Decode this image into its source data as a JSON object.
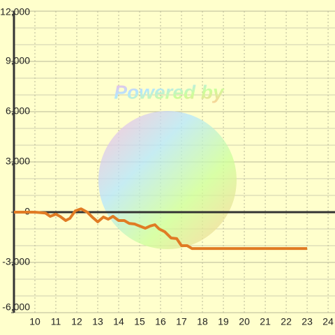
{
  "chart_data": {
    "type": "line",
    "watermark": "Powered by",
    "x": [
      9,
      10,
      10.5,
      10.73,
      11,
      11.2,
      11.47,
      11.67,
      11.93,
      12.2,
      12.5,
      12.77,
      13,
      13.27,
      13.5,
      13.73,
      14,
      14.27,
      14.5,
      14.77,
      15,
      15.27,
      15.5,
      15.73,
      15.93,
      16.2,
      16.5,
      16.77,
      17,
      17.27,
      17.5,
      23
    ],
    "series": [
      {
        "color": "#e07b24",
        "values": [
          0,
          0,
          -50,
          -250,
          -120,
          -250,
          -500,
          -370,
          80,
          200,
          0,
          -330,
          -580,
          -290,
          -420,
          -250,
          -500,
          -500,
          -670,
          -710,
          -830,
          -960,
          -830,
          -750,
          -1000,
          -1170,
          -1540,
          -1580,
          -2000,
          -2000,
          -2170,
          -2170
        ]
      }
    ],
    "xlim": [
      9,
      24.33
    ],
    "xticks": [
      10,
      11,
      12,
      13,
      14,
      15,
      16,
      17,
      18,
      19,
      20,
      21,
      22,
      23,
      24
    ],
    "ylim": [
      -6000,
      12000
    ],
    "yticks": [
      {
        "value": -6000,
        "label": "-6,000"
      },
      {
        "value": -3000,
        "label": "-3,000"
      },
      0,
      {
        "value": 3000,
        "label": "3,000"
      },
      {
        "value": 6000,
        "label": "6,000"
      },
      {
        "value": 9000,
        "label": "9,000"
      },
      {
        "value": 12000,
        "label": "12,000"
      }
    ],
    "y_minor_step": 1000,
    "grid": true
  }
}
